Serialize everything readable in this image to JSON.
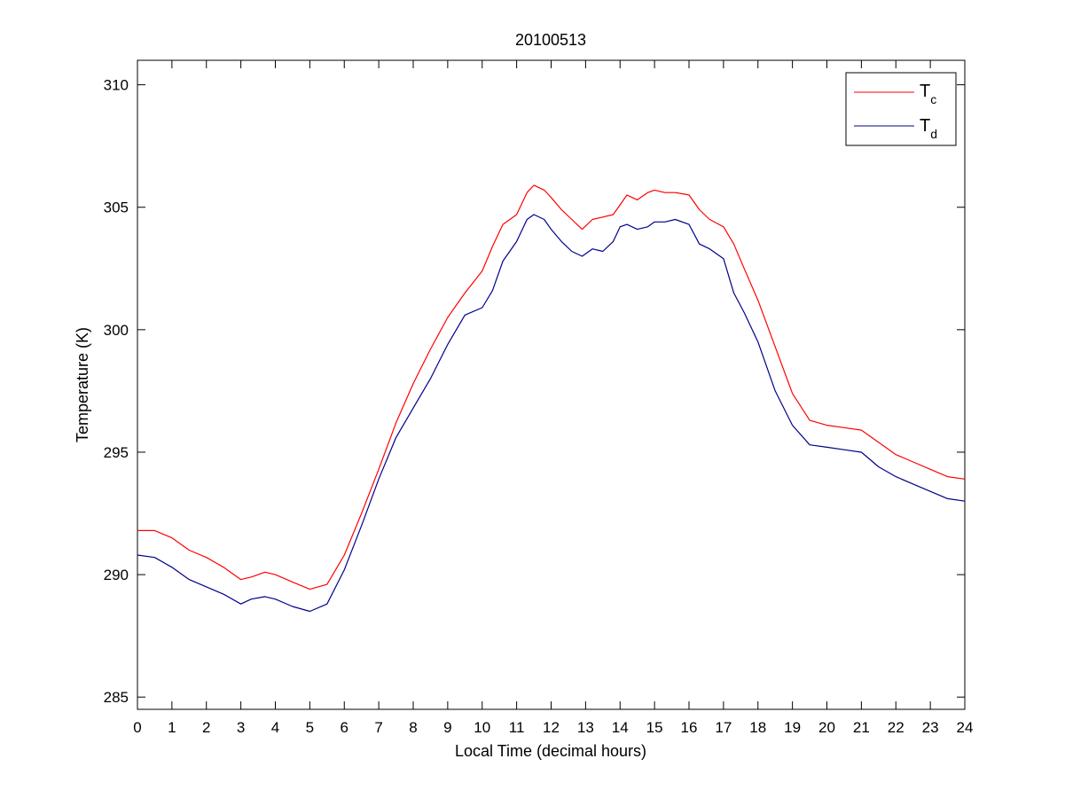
{
  "chart_data": {
    "type": "line",
    "title": "20100513",
    "xlabel": "Local Time (decimal hours)",
    "ylabel": "Temperature (K)",
    "xlim": [
      0,
      24
    ],
    "ylim": [
      284.5,
      311
    ],
    "xticks": [
      0,
      1,
      2,
      3,
      4,
      5,
      6,
      7,
      8,
      9,
      10,
      11,
      12,
      13,
      14,
      15,
      16,
      17,
      18,
      19,
      20,
      21,
      22,
      23,
      24
    ],
    "yticks": [
      285,
      290,
      295,
      300,
      305,
      310
    ],
    "grid": false,
    "legend_position": "top-right",
    "series": [
      {
        "name": "T",
        "name_subscript": "c",
        "color": "#ff0000",
        "x": [
          0,
          0.5,
          1,
          1.5,
          2,
          2.5,
          3,
          3.3,
          3.7,
          4,
          4.5,
          5,
          5.5,
          6,
          6.5,
          7,
          7.5,
          8,
          8.5,
          9,
          9.5,
          10,
          10.3,
          10.6,
          11,
          11.3,
          11.5,
          11.8,
          12,
          12.3,
          12.6,
          12.9,
          13.2,
          13.5,
          13.8,
          14,
          14.2,
          14.5,
          14.8,
          15,
          15.3,
          15.6,
          16,
          16.3,
          16.6,
          17,
          17.3,
          17.6,
          18,
          18.5,
          19,
          19.5,
          20,
          20.5,
          21,
          21.5,
          22,
          22.5,
          23,
          23.5,
          24
        ],
        "y": [
          291.8,
          291.8,
          291.5,
          291.0,
          290.7,
          290.3,
          289.8,
          289.9,
          290.1,
          290.0,
          289.7,
          289.4,
          289.6,
          290.8,
          292.5,
          294.3,
          296.2,
          297.8,
          299.2,
          300.5,
          301.5,
          302.4,
          303.4,
          304.3,
          304.7,
          305.6,
          305.9,
          305.7,
          305.4,
          304.9,
          304.5,
          304.1,
          304.5,
          304.6,
          304.7,
          305.1,
          305.5,
          305.3,
          305.6,
          305.7,
          305.6,
          305.6,
          305.5,
          304.9,
          304.5,
          304.2,
          303.5,
          302.5,
          301.2,
          299.3,
          297.4,
          296.3,
          296.1,
          296.0,
          295.9,
          295.4,
          294.9,
          294.6,
          294.3,
          294.0,
          293.9
        ]
      },
      {
        "name": "T",
        "name_subscript": "d",
        "color": "#00008b",
        "x": [
          0,
          0.5,
          1,
          1.5,
          2,
          2.5,
          3,
          3.3,
          3.7,
          4,
          4.5,
          5,
          5.5,
          6,
          6.5,
          7,
          7.5,
          8,
          8.5,
          9,
          9.5,
          10,
          10.3,
          10.6,
          11,
          11.3,
          11.5,
          11.8,
          12,
          12.3,
          12.6,
          12.9,
          13.2,
          13.5,
          13.8,
          14,
          14.2,
          14.5,
          14.8,
          15,
          15.3,
          15.6,
          16,
          16.3,
          16.6,
          17,
          17.3,
          17.6,
          18,
          18.5,
          19,
          19.5,
          20,
          20.5,
          21,
          21.5,
          22,
          22.5,
          23,
          23.5,
          24
        ],
        "y": [
          290.8,
          290.7,
          290.3,
          289.8,
          289.5,
          289.2,
          288.8,
          289.0,
          289.1,
          289.0,
          288.7,
          288.5,
          288.8,
          290.2,
          292.0,
          293.9,
          295.6,
          296.8,
          298.0,
          299.4,
          300.6,
          300.9,
          301.6,
          302.8,
          303.6,
          304.5,
          304.7,
          304.5,
          304.1,
          303.6,
          303.2,
          303.0,
          303.3,
          303.2,
          303.6,
          304.2,
          304.3,
          304.1,
          304.2,
          304.4,
          304.4,
          304.5,
          304.3,
          303.5,
          303.3,
          302.9,
          301.5,
          300.7,
          299.5,
          297.5,
          296.1,
          295.3,
          295.2,
          295.1,
          295.0,
          294.4,
          294.0,
          293.7,
          293.4,
          293.1,
          293.0
        ]
      }
    ]
  }
}
